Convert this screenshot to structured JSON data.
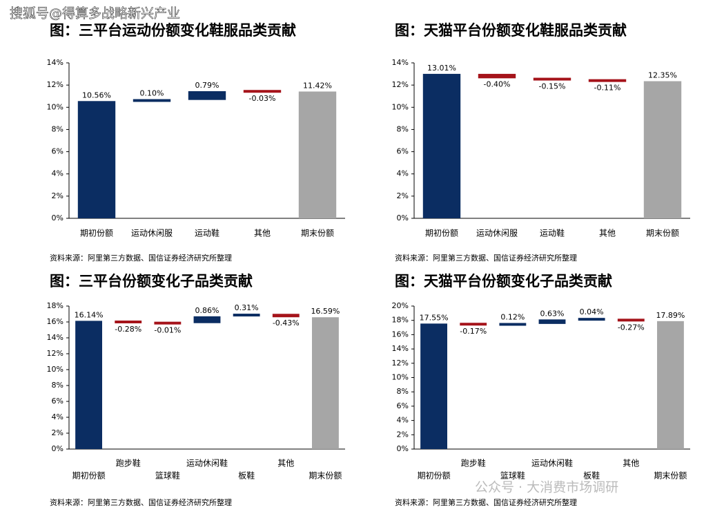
{
  "watermarks": {
    "top": "搜狐号@得算多战略新兴产业",
    "bottom": "公众号 · 大消费市场调研"
  },
  "chart_data": [
    {
      "type": "waterfall",
      "title": "图：三平台运动份额变化鞋服品类贡献",
      "categories": [
        "期初份额",
        "运动休闲服",
        "运动鞋",
        "其他",
        "期末份额"
      ],
      "values": [
        10.56,
        0.1,
        0.79,
        -0.03,
        11.42
      ],
      "value_labels": [
        "10.56%",
        "0.10%",
        "0.79%",
        "-0.03%",
        "11.42%"
      ],
      "measure": [
        "absolute",
        "relative",
        "relative",
        "relative",
        "absolute"
      ],
      "colors": [
        "#0b2d62",
        "#0b2d62",
        "#0b2d62",
        "#a5131a",
        "#a6a6a6"
      ],
      "ylim": [
        0,
        14
      ],
      "yticks": [
        {
          "value": 0,
          "label": "0%"
        },
        {
          "value": 2,
          "label": "2%"
        },
        {
          "value": 4,
          "label": "4%"
        },
        {
          "value": 6,
          "label": "6%"
        },
        {
          "value": 8,
          "label": "8%"
        },
        {
          "value": 10,
          "label": "10%"
        },
        {
          "value": 12,
          "label": "12%"
        },
        {
          "value": 14,
          "label": "14%"
        }
      ],
      "source": "资料来源：阿里第三方数据、国信证券经济研究所整理"
    },
    {
      "type": "waterfall",
      "title": "图：天猫平台份额变化鞋服品类贡献",
      "categories": [
        "期初份额",
        "运动休闲服",
        "运动鞋",
        "其他",
        "期末份额"
      ],
      "values": [
        13.01,
        -0.4,
        -0.15,
        -0.11,
        12.35
      ],
      "value_labels": [
        "13.01%",
        "-0.40%",
        "-0.15%",
        "-0.11%",
        "12.35%"
      ],
      "measure": [
        "absolute",
        "relative",
        "relative",
        "relative",
        "absolute"
      ],
      "colors": [
        "#0b2d62",
        "#a5131a",
        "#a5131a",
        "#a5131a",
        "#a6a6a6"
      ],
      "ylim": [
        0,
        14
      ],
      "yticks": [
        {
          "value": 0,
          "label": "0%"
        },
        {
          "value": 2,
          "label": "2%"
        },
        {
          "value": 4,
          "label": "4%"
        },
        {
          "value": 6,
          "label": "6%"
        },
        {
          "value": 8,
          "label": "8%"
        },
        {
          "value": 10,
          "label": "10%"
        },
        {
          "value": 12,
          "label": "12%"
        },
        {
          "value": 14,
          "label": "14%"
        }
      ],
      "source": "资料来源：阿里第三方数据、国信证券经济研究所整理"
    },
    {
      "type": "waterfall",
      "title": "图：三平台份额变化子品类贡献",
      "categories": [
        "期初份额",
        "跑步鞋",
        "篮球鞋",
        "运动休闲鞋",
        "板鞋",
        "其他",
        "期末份额"
      ],
      "values": [
        16.14,
        -0.28,
        -0.01,
        0.86,
        0.31,
        -0.43,
        16.59
      ],
      "value_labels": [
        "16.14%",
        "-0.28%",
        "-0.01%",
        "0.86%",
        "0.31%",
        "-0.43%",
        "16.59%"
      ],
      "measure": [
        "absolute",
        "relative",
        "relative",
        "relative",
        "relative",
        "relative",
        "absolute"
      ],
      "colors": [
        "#0b2d62",
        "#a5131a",
        "#a5131a",
        "#0b2d62",
        "#0b2d62",
        "#a5131a",
        "#a6a6a6"
      ],
      "ylim": [
        0,
        18
      ],
      "yticks": [
        {
          "value": 0,
          "label": "0%"
        },
        {
          "value": 2,
          "label": "2%"
        },
        {
          "value": 4,
          "label": "4%"
        },
        {
          "value": 6,
          "label": "6%"
        },
        {
          "value": 8,
          "label": "8%"
        },
        {
          "value": 10,
          "label": "10%"
        },
        {
          "value": 12,
          "label": "12%"
        },
        {
          "value": 14,
          "label": "14%"
        },
        {
          "value": 16,
          "label": "16%"
        },
        {
          "value": 18,
          "label": "18%"
        }
      ],
      "source": "资料来源：阿里第三方数据、国信证券经济研究所整理"
    },
    {
      "type": "waterfall",
      "title": "图：天猫平台份额变化子品类贡献",
      "categories": [
        "期初份额",
        "跑步鞋",
        "篮球鞋",
        "运动休闲鞋",
        "板鞋",
        "其他",
        "期末份额"
      ],
      "values": [
        17.55,
        -0.17,
        0.12,
        0.63,
        0.04,
        -0.27,
        17.89
      ],
      "value_labels": [
        "17.55%",
        "-0.17%",
        "0.12%",
        "0.63%",
        "0.04%",
        "-0.27%",
        "17.89%"
      ],
      "measure": [
        "absolute",
        "relative",
        "relative",
        "relative",
        "relative",
        "relative",
        "absolute"
      ],
      "colors": [
        "#0b2d62",
        "#a5131a",
        "#0b2d62",
        "#0b2d62",
        "#0b2d62",
        "#a5131a",
        "#a6a6a6"
      ],
      "ylim": [
        0,
        20
      ],
      "yticks": [
        {
          "value": 0,
          "label": "0%"
        },
        {
          "value": 2,
          "label": "2%"
        },
        {
          "value": 4,
          "label": "4%"
        },
        {
          "value": 6,
          "label": "6%"
        },
        {
          "value": 8,
          "label": "8%"
        },
        {
          "value": 10,
          "label": "10%"
        },
        {
          "value": 12,
          "label": "12%"
        },
        {
          "value": 14,
          "label": "14%"
        },
        {
          "value": 16,
          "label": "16%"
        },
        {
          "value": 18,
          "label": "18%"
        },
        {
          "value": 20,
          "label": "20%"
        }
      ],
      "source": "资料来源：阿里第三方数据、国信证券经济研究所整理"
    }
  ]
}
